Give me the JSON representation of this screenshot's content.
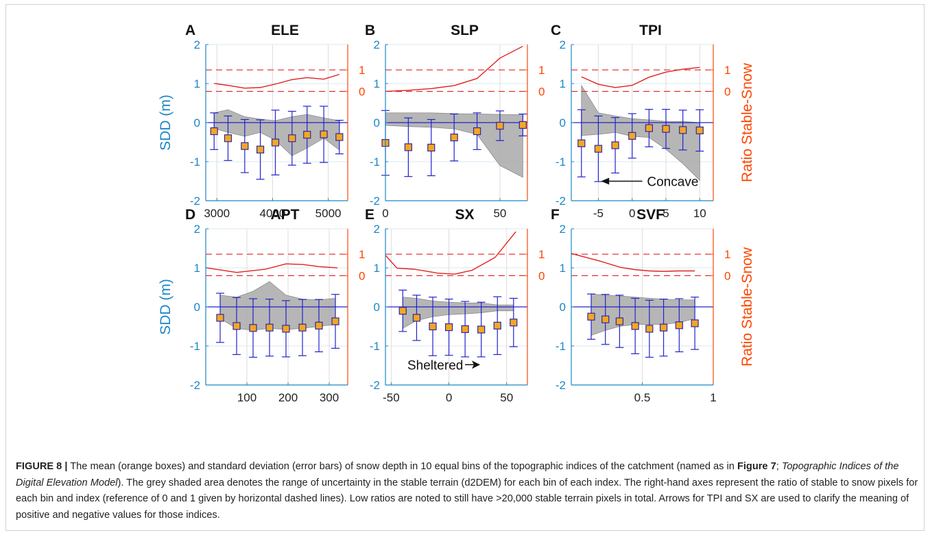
{
  "figure": {
    "caption": {
      "label": "FIGURE 8 |",
      "text1": " The mean (orange boxes) and standard deviation (error bars) of snow depth in 10 equal bins of the topographic indices of the catchment (named as in ",
      "ref_figure": "Figure 7",
      "text2": "; ",
      "ref_section": "Topographic Indices of the Digital Elevation Model",
      "text3": "). The grey shaded area denotes the range of uncertainty in the stable terrain (d2DEM) for each bin of each index. The right-hand axes represent the ratio of stable to snow pixels for each bin and index (reference of 0 and 1 given by horizontal dashed lines). Low ratios are noted to still have >20,000 stable terrain pixels in total. Arrows for TPI and SX are used to clarify the meaning of positive and negative values for those indices."
    },
    "left_axis_label": "SDD (m)",
    "right_axis_label": "Ratio Stable-Snow",
    "colors": {
      "left_axis": "#1a86c8",
      "right_axis": "#ff4500",
      "ratio_line": "#e02020",
      "shade": "#a9a9a9",
      "error_bar": "#2222cc",
      "box_fill": "#f5a623",
      "box_edge": "#2a2aa0"
    }
  },
  "chart_data": [
    {
      "panel": "A",
      "title": "ELE",
      "type": "errorbar",
      "xlim": [
        2800,
        5350
      ],
      "xticks": [
        3000,
        4000,
        5000
      ],
      "ylim": [
        -2,
        2
      ],
      "yticks": [
        -2,
        -1,
        0,
        1,
        2
      ],
      "right_ticks": [
        "0",
        "1"
      ],
      "x": [
        2950,
        3200,
        3500,
        3780,
        4050,
        4350,
        4620,
        4920,
        5200
      ],
      "mean": [
        -0.22,
        -0.4,
        -0.6,
        -0.69,
        -0.51,
        -0.4,
        -0.31,
        -0.3,
        -0.37
      ],
      "std": [
        0.47,
        0.57,
        0.68,
        0.76,
        0.83,
        0.69,
        0.73,
        0.72,
        0.43
      ],
      "shade_upper": [
        0.25,
        0.33,
        0.15,
        0.09,
        0.05,
        0.15,
        0.21,
        0.12,
        0.05
      ],
      "shade_lower": [
        -0.15,
        -0.25,
        -0.35,
        -0.25,
        -0.45,
        -0.85,
        -0.65,
        -0.4,
        -0.7
      ],
      "ratio": [
        0.37,
        0.28,
        0.15,
        0.18,
        0.34,
        0.55,
        0.64,
        0.57,
        0.79
      ]
    },
    {
      "panel": "B",
      "title": "SLP",
      "type": "errorbar",
      "xlim": [
        0,
        62
      ],
      "xticks": [
        0,
        50
      ],
      "ylim": [
        -2,
        2
      ],
      "yticks": [
        -2,
        -1,
        0,
        1,
        2
      ],
      "right_ticks": [
        "0",
        "1"
      ],
      "x": [
        0,
        10,
        20,
        30,
        40,
        50,
        60
      ],
      "mean": [
        -0.52,
        -0.63,
        -0.64,
        -0.38,
        -0.22,
        -0.08,
        -0.06
      ],
      "std": [
        0.83,
        0.75,
        0.72,
        0.6,
        0.47,
        0.38,
        0.28
      ],
      "shade_upper": [
        0.25,
        0.25,
        0.25,
        0.23,
        0.22,
        0.21,
        0.2
      ],
      "shade_lower": [
        -0.07,
        -0.1,
        -0.12,
        -0.16,
        -0.3,
        -1.1,
        -1.4
      ],
      "ratio": [
        0.0,
        0.05,
        0.13,
        0.27,
        0.6,
        1.55,
        2.1
      ]
    },
    {
      "panel": "C",
      "title": "TPI",
      "type": "errorbar",
      "xlim": [
        -9,
        12
      ],
      "xticks": [
        -5,
        0,
        5,
        10
      ],
      "ylim": [
        -2,
        2
      ],
      "yticks": [
        -2,
        -1,
        0,
        1,
        2
      ],
      "right_ticks": [
        "0",
        "1"
      ],
      "x": [
        -7.5,
        -5.0,
        -2.5,
        0.0,
        2.5,
        5.0,
        7.5,
        10.0
      ],
      "mean": [
        -0.53,
        -0.67,
        -0.58,
        -0.34,
        -0.14,
        -0.16,
        -0.19,
        -0.2
      ],
      "std": [
        0.86,
        0.84,
        0.71,
        0.57,
        0.48,
        0.5,
        0.51,
        0.53
      ],
      "shade_upper": [
        0.95,
        0.25,
        0.17,
        0.1,
        0.07,
        0.03,
        0.03,
        0.0
      ],
      "shade_lower": [
        -0.33,
        -0.3,
        -0.25,
        -0.35,
        -0.38,
        -0.68,
        -1.05,
        -1.48
      ],
      "ratio": [
        0.68,
        0.33,
        0.18,
        0.28,
        0.66,
        0.9,
        1.03,
        1.12
      ],
      "annotation": "Concave"
    },
    {
      "panel": "D",
      "title": "APT",
      "type": "errorbar",
      "xlim": [
        0,
        345
      ],
      "xticks": [
        100,
        200,
        300
      ],
      "ylim": [
        -2,
        2
      ],
      "yticks": [
        -2,
        -1,
        0,
        1,
        2
      ],
      "right_ticks": [
        "0",
        "1"
      ],
      "x": [
        35,
        75,
        115,
        155,
        195,
        235,
        275,
        315
      ],
      "mean": [
        -0.28,
        -0.49,
        -0.54,
        -0.53,
        -0.56,
        -0.53,
        -0.48,
        -0.37
      ],
      "std": [
        0.63,
        0.73,
        0.75,
        0.73,
        0.72,
        0.72,
        0.67,
        0.69
      ],
      "shade_upper": [
        0.3,
        0.25,
        0.4,
        0.65,
        0.3,
        0.2,
        0.18,
        0.22
      ],
      "shade_lower": [
        -0.3,
        -0.55,
        -0.6,
        -0.55,
        -0.58,
        -0.55,
        -0.5,
        -0.45
      ],
      "ratio": [
        0.37,
        0.15,
        0.3,
        0.55,
        0.52,
        0.42,
        0.36
      ],
      "ratio_x": [
        0,
        75,
        145,
        195,
        235,
        275,
        320
      ]
    },
    {
      "panel": "E",
      "title": "SX",
      "type": "errorbar",
      "xlim": [
        -55,
        68
      ],
      "xticks": [
        -50,
        0,
        50
      ],
      "ylim": [
        -2,
        2
      ],
      "yticks": [
        -2,
        -1,
        0,
        1,
        2
      ],
      "right_ticks": [
        "0",
        "1"
      ],
      "x": [
        -40,
        -28,
        -14,
        0,
        14,
        28,
        42,
        56
      ],
      "mean": [
        -0.1,
        -0.28,
        -0.5,
        -0.52,
        -0.57,
        -0.58,
        -0.48,
        -0.4
      ],
      "std": [
        0.53,
        0.58,
        0.75,
        0.72,
        0.71,
        0.7,
        0.74,
        0.62
      ],
      "shade_upper": [
        0.25,
        0.22,
        0.15,
        0.12,
        0.1,
        0.1,
        0.05,
        0.05
      ],
      "shade_lower": [
        -0.55,
        -0.35,
        -0.25,
        -0.2,
        -0.18,
        -0.15,
        -0.1,
        -0.1
      ],
      "ratio": [
        0.95,
        0.35,
        0.3,
        0.12,
        0.07,
        0.25,
        0.85,
        2.05
      ],
      "ratio_x": [
        -55,
        -45,
        -30,
        -10,
        5,
        20,
        40,
        58
      ],
      "annotation": "Sheltered"
    },
    {
      "panel": "F",
      "title": "SVF",
      "type": "errorbar",
      "xlim": [
        0,
        1.0
      ],
      "xticks": [
        0.5,
        1
      ],
      "ylim": [
        -2,
        2
      ],
      "yticks": [
        -2,
        -1,
        0,
        1,
        2
      ],
      "right_ticks": [
        "0",
        "1"
      ],
      "x": [
        0.14,
        0.24,
        0.34,
        0.45,
        0.55,
        0.65,
        0.76,
        0.87
      ],
      "mean": [
        -0.25,
        -0.32,
        -0.37,
        -0.49,
        -0.56,
        -0.53,
        -0.47,
        -0.42
      ],
      "std": [
        0.58,
        0.64,
        0.67,
        0.71,
        0.73,
        0.73,
        0.68,
        0.67
      ],
      "shade_upper": [
        0.33,
        0.3,
        0.28,
        0.25,
        0.22,
        0.2,
        0.18,
        0.18
      ],
      "shade_lower": [
        -0.73,
        -0.6,
        -0.5,
        -0.45,
        -0.45,
        -0.45,
        -0.4,
        -0.3
      ],
      "ratio": [
        1.03,
        0.68,
        0.38,
        0.28,
        0.22,
        0.2,
        0.22,
        0.22
      ],
      "ratio_x": [
        0,
        0.2,
        0.35,
        0.45,
        0.55,
        0.65,
        0.75,
        0.87
      ]
    }
  ]
}
